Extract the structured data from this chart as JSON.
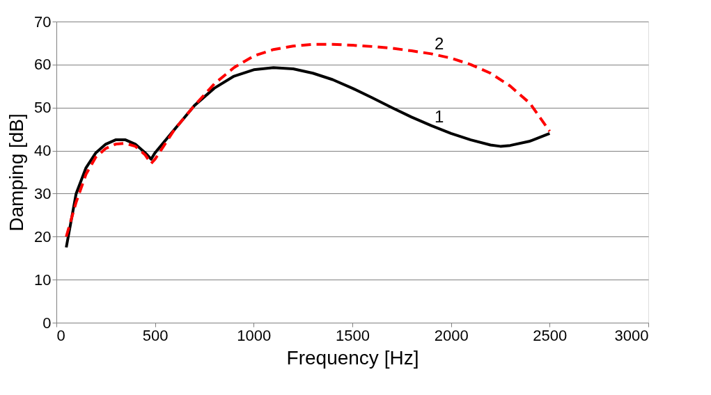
{
  "chart_data": {
    "type": "line",
    "xlabel": "Frequency [Hz]",
    "ylabel": "Damping [dB]",
    "xlim": [
      0,
      3000
    ],
    "xticks": [
      0,
      500,
      1000,
      1500,
      2000,
      2500,
      3000
    ],
    "ylim": [
      0,
      70
    ],
    "yticks": [
      0,
      10,
      20,
      30,
      40,
      50,
      60,
      70
    ],
    "grid": "y",
    "annotations": [
      {
        "text": "1",
        "x": 1940,
        "y": 45.1
      },
      {
        "text": "2",
        "x": 1940,
        "y": 62.1
      }
    ],
    "series": [
      {
        "color": "#000000",
        "line_style": "solid",
        "x": [
          50,
          100,
          150,
          200,
          250,
          300,
          350,
          400,
          450,
          480,
          500,
          600,
          700,
          800,
          900,
          1000,
          1100,
          1200,
          1300,
          1400,
          1500,
          1600,
          1700,
          1800,
          1900,
          2000,
          2100,
          2200,
          2250,
          2300,
          2400,
          2500
        ],
        "values": [
          17.5,
          30,
          36,
          39.5,
          41.5,
          42.5,
          42.5,
          41.5,
          39.5,
          38,
          39.5,
          45,
          50.5,
          54.5,
          57.3,
          58.8,
          59.3,
          59,
          58,
          56.5,
          54.5,
          52.3,
          50,
          47.8,
          45.8,
          44,
          42.5,
          41.3,
          41,
          41.2,
          42.2,
          44
        ]
      },
      {
        "color": "#ff0000",
        "line_style": "dashed",
        "x": [
          50,
          100,
          150,
          200,
          250,
          300,
          350,
          400,
          450,
          480,
          500,
          600,
          700,
          800,
          900,
          1000,
          1100,
          1200,
          1300,
          1400,
          1500,
          1600,
          1700,
          1800,
          1900,
          2000,
          2100,
          2200,
          2300,
          2400,
          2500
        ],
        "values": [
          20,
          28,
          34.5,
          38.5,
          40.5,
          41.5,
          41.7,
          41,
          39,
          37,
          38,
          45,
          50.5,
          55.5,
          59.3,
          62,
          63.5,
          64.3,
          64.7,
          64.7,
          64.5,
          64.2,
          63.8,
          63.2,
          62.5,
          61.5,
          60,
          58,
          55,
          51,
          44.5
        ]
      }
    ]
  }
}
